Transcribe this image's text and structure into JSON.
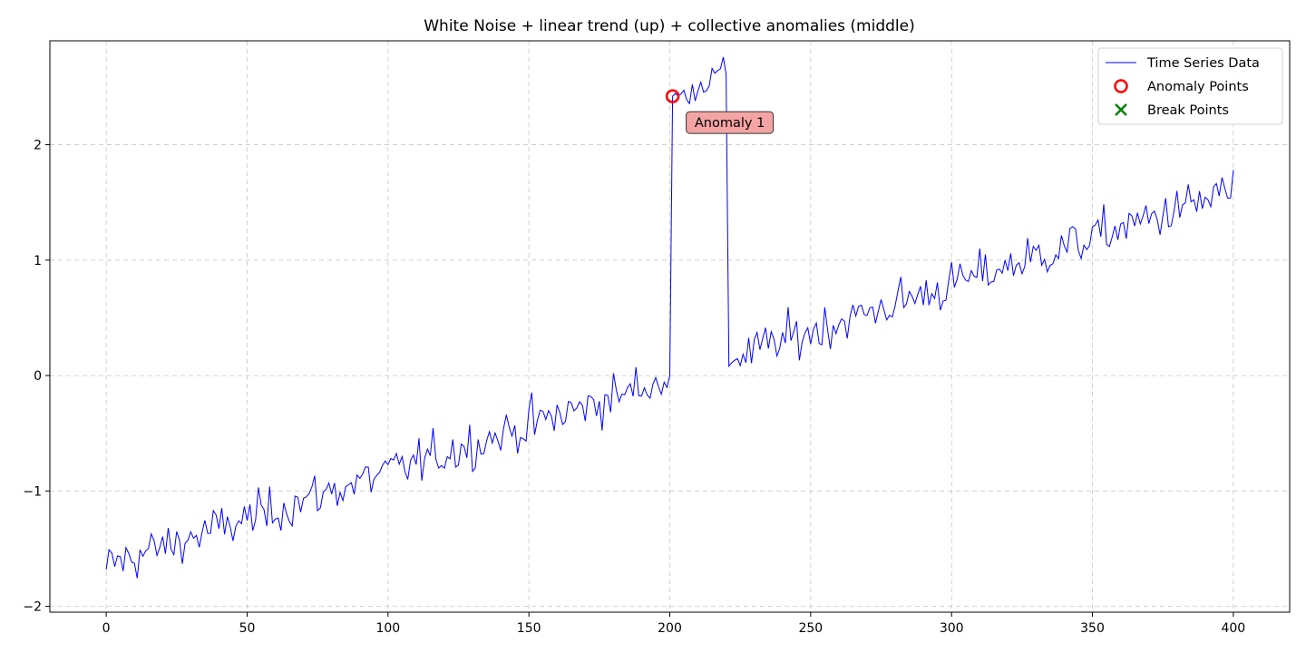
{
  "chart_data": {
    "type": "line",
    "title": "White Noise + linear trend (up) + collective anomalies (middle)",
    "xlabel": "",
    "ylabel": "",
    "xlim": [
      -20,
      420
    ],
    "ylim": [
      -2.05,
      2.9
    ],
    "xticks": [
      0,
      50,
      100,
      150,
      200,
      250,
      300,
      350,
      400
    ],
    "xtick_labels": [
      "0",
      "50",
      "100",
      "150",
      "200",
      "250",
      "300",
      "350",
      "400"
    ],
    "yticks": [
      -2,
      -1,
      0,
      1,
      2
    ],
    "ytick_labels": [
      "−2",
      "−1",
      "0",
      "1",
      "2"
    ],
    "grid": true,
    "legend_position": "top-right",
    "legend": [
      {
        "label": "Time Series Data",
        "marker": "line",
        "color": "#0000ff"
      },
      {
        "label": "Anomaly Points",
        "marker": "circle",
        "color": "#ff0000"
      },
      {
        "label": "Break Points",
        "marker": "x",
        "color": "#008000"
      }
    ],
    "series": [
      {
        "name": "Time Series Data",
        "color": "#0000ff",
        "trend": {
          "x_start": 0,
          "x_end": 400,
          "y_start": -1.65,
          "y_end": 1.6
        },
        "anomaly_segment": {
          "x_start": 201,
          "x_end": 220,
          "y_start": 2.38,
          "y_end": 2.65
        },
        "x": [
          0,
          400
        ],
        "y": [
          -1.68,
          1.78
        ],
        "n_points": 401
      }
    ],
    "anomaly_points": [
      {
        "x": 201,
        "y": 2.42
      }
    ],
    "break_points": [],
    "annotations": [
      {
        "text": "Anomaly 1",
        "x": 201,
        "y": 2.42
      }
    ]
  }
}
